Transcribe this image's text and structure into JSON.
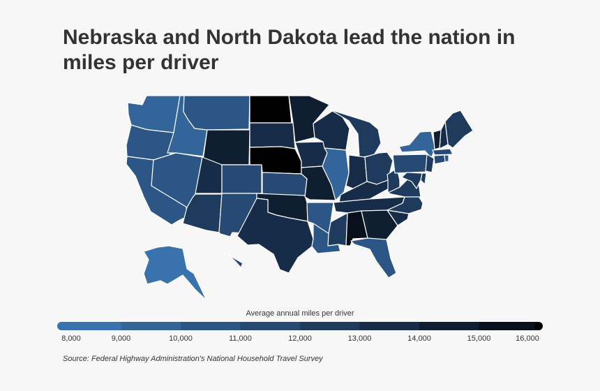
{
  "title": "Nebraska and North Dakota lead the nation in miles per driver",
  "legend": {
    "title": "Average annual miles per driver",
    "ticks": [
      "8,000",
      "9,000",
      "10,000",
      "11,000",
      "12,000",
      "13,000",
      "14,000",
      "15,000",
      "16,000"
    ]
  },
  "source": "Source: Federal Highway Administration's National Household Travel Survey",
  "colors": {
    "background": "#f7f7f7",
    "scale": [
      "#3a72ad",
      "#33649a",
      "#2b5686",
      "#264a73",
      "#1e3b5e",
      "#172c48",
      "#0f1e31",
      "#07101b",
      "#000000"
    ],
    "state_border": "#ffffff"
  },
  "map_data": {
    "unit": "Average annual miles per driver",
    "states": {
      "WA": 9000,
      "OR": 9700,
      "CA": 10300,
      "ID": 9300,
      "NV": 9500,
      "MT": 10000,
      "WY": 14400,
      "UT": 12500,
      "AZ": 11500,
      "CO": 10600,
      "NM": 11000,
      "ND": 15500,
      "SD": 12500,
      "NE": 16000,
      "KS": 11200,
      "OK": 13500,
      "TX": 12500,
      "MN": 13800,
      "IA": 12700,
      "MO": 14200,
      "AR": 9700,
      "LA": 10200,
      "WI": 12500,
      "IL": 9300,
      "MI": 12000,
      "IN": 12700,
      "OH": 12400,
      "KY": 12700,
      "TN": 13100,
      "MS": 12400,
      "AL": 15200,
      "GA": 13600,
      "FL": 9800,
      "SC": 12900,
      "NC": 11500,
      "VA": 12200,
      "WV": 11800,
      "PA": 11200,
      "NY": 8500,
      "ME": 11600,
      "NH": 12800,
      "VT": 14000,
      "MA": 11000,
      "CT": 11000,
      "RI": 10000,
      "NJ": 11500,
      "DE": 12000,
      "MD": 11800,
      "AK": 8300,
      "HI": 11000
    }
  }
}
